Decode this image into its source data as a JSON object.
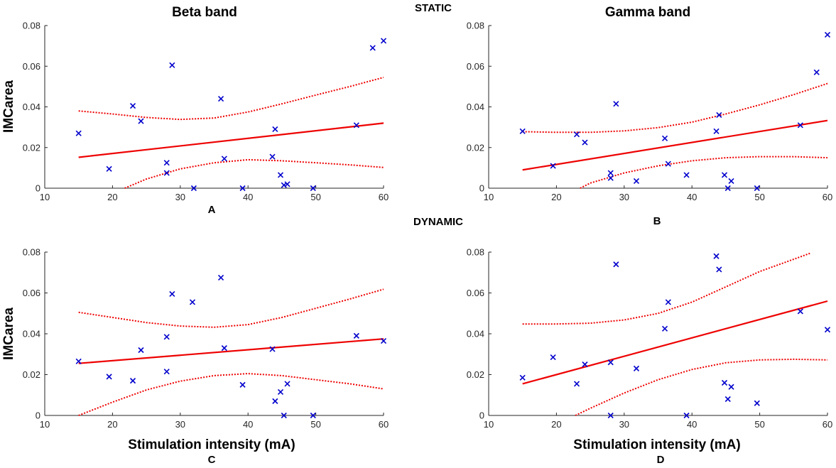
{
  "figure": {
    "section_labels": {
      "static": "STATIC",
      "dynamic": "DYNAMIC"
    },
    "colors": {
      "points": "#0000cc",
      "fit": "#ee0000",
      "axis": "#262626"
    }
  },
  "chart_data": [
    {
      "id": "A",
      "type": "scatter",
      "title": "Beta band",
      "panel_label": "A",
      "xlabel": "",
      "ylabel": "IMCarea",
      "xlim": [
        10,
        60
      ],
      "ylim": [
        0,
        0.08
      ],
      "x_ticks": [
        "10",
        "20",
        "30",
        "40",
        "50",
        "60"
      ],
      "y_ticks": [
        "0",
        "0.02",
        "0.04",
        "0.06",
        "0.08"
      ],
      "points": [
        [
          15,
          0.027
        ],
        [
          19.5,
          0.0095
        ],
        [
          23,
          0.0405
        ],
        [
          24.2,
          0.033
        ],
        [
          28,
          0.0125
        ],
        [
          28,
          0.0075
        ],
        [
          28.8,
          0.0605
        ],
        [
          32,
          0.0
        ],
        [
          36,
          0.044
        ],
        [
          36.5,
          0.0145
        ],
        [
          39.2,
          0.0
        ],
        [
          43.6,
          0.0155
        ],
        [
          44,
          0.029
        ],
        [
          44.8,
          0.0065
        ],
        [
          45.3,
          0.0015
        ],
        [
          45.8,
          0.002
        ],
        [
          49.6,
          0.0
        ],
        [
          56,
          0.031
        ],
        [
          58.4,
          0.069
        ],
        [
          60,
          0.0725
        ]
      ],
      "fit_line": [
        [
          15,
          0.0152
        ],
        [
          60,
          0.032
        ]
      ],
      "ci_upper": [
        [
          15,
          0.038
        ],
        [
          20,
          0.0365
        ],
        [
          25,
          0.0348
        ],
        [
          30,
          0.0338
        ],
        [
          35,
          0.0345
        ],
        [
          40,
          0.0375
        ],
        [
          45,
          0.0415
        ],
        [
          50,
          0.0458
        ],
        [
          55,
          0.05
        ],
        [
          60,
          0.0545
        ]
      ],
      "ci_lower": [
        [
          21.8,
          0.0
        ],
        [
          25,
          0.0045
        ],
        [
          30,
          0.0095
        ],
        [
          35,
          0.0125
        ],
        [
          40,
          0.014
        ],
        [
          45,
          0.0135
        ],
        [
          50,
          0.0125
        ],
        [
          55,
          0.0115
        ],
        [
          60,
          0.0102
        ]
      ]
    },
    {
      "id": "B",
      "type": "scatter",
      "title": "Gamma band",
      "panel_label": "B",
      "xlabel": "",
      "ylabel": "",
      "xlim": [
        10,
        60
      ],
      "ylim": [
        0,
        0.08
      ],
      "x_ticks": [
        "10",
        "20",
        "30",
        "40",
        "50",
        "60"
      ],
      "y_ticks": [
        "0",
        "0.02",
        "0.04",
        "0.06",
        "0.08"
      ],
      "points": [
        [
          15,
          0.028
        ],
        [
          19.5,
          0.011
        ],
        [
          23,
          0.0265
        ],
        [
          24.2,
          0.0225
        ],
        [
          28,
          0.0075
        ],
        [
          28,
          0.005
        ],
        [
          28.8,
          0.0415
        ],
        [
          31.8,
          0.0035
        ],
        [
          36,
          0.0245
        ],
        [
          36.5,
          0.012
        ],
        [
          39.2,
          0.0065
        ],
        [
          43.6,
          0.028
        ],
        [
          44,
          0.036
        ],
        [
          44.8,
          0.0065
        ],
        [
          45.3,
          0.0
        ],
        [
          45.8,
          0.0035
        ],
        [
          49.6,
          0.0
        ],
        [
          56,
          0.031
        ],
        [
          58.4,
          0.057
        ],
        [
          60,
          0.0755
        ]
      ],
      "fit_line": [
        [
          15,
          0.009
        ],
        [
          60,
          0.0333
        ]
      ],
      "ci_upper": [
        [
          15,
          0.0278
        ],
        [
          20,
          0.0275
        ],
        [
          25,
          0.0275
        ],
        [
          30,
          0.0282
        ],
        [
          35,
          0.0298
        ],
        [
          40,
          0.0325
        ],
        [
          45,
          0.0365
        ],
        [
          50,
          0.041
        ],
        [
          55,
          0.046
        ],
        [
          60,
          0.0515
        ]
      ],
      "ci_lower": [
        [
          23.5,
          0.0
        ],
        [
          25,
          0.0025
        ],
        [
          30,
          0.0075
        ],
        [
          35,
          0.011
        ],
        [
          40,
          0.0135
        ],
        [
          45,
          0.015
        ],
        [
          50,
          0.0155
        ],
        [
          55,
          0.0155
        ],
        [
          60,
          0.015
        ]
      ]
    },
    {
      "id": "C",
      "type": "scatter",
      "title": "",
      "panel_label": "C",
      "xlabel": "Stimulation intensity (mA)",
      "ylabel": "IMCarea",
      "xlim": [
        10,
        60
      ],
      "ylim": [
        0,
        0.08
      ],
      "x_ticks": [
        "10",
        "20",
        "30",
        "40",
        "50",
        "60"
      ],
      "y_ticks": [
        "0",
        "0.02",
        "0.04",
        "0.06",
        "0.08"
      ],
      "points": [
        [
          15,
          0.0265
        ],
        [
          19.5,
          0.019
        ],
        [
          23,
          0.017
        ],
        [
          24.2,
          0.032
        ],
        [
          28,
          0.0385
        ],
        [
          28,
          0.0215
        ],
        [
          28.8,
          0.0595
        ],
        [
          31.8,
          0.0555
        ],
        [
          36,
          0.0675
        ],
        [
          36.5,
          0.033
        ],
        [
          39.2,
          0.015
        ],
        [
          43.6,
          0.0325
        ],
        [
          44,
          0.007
        ],
        [
          44.8,
          0.0115
        ],
        [
          45.3,
          0.0
        ],
        [
          45.8,
          0.0155
        ],
        [
          49.6,
          0.0
        ],
        [
          56,
          0.039
        ],
        [
          60,
          0.0365
        ]
      ],
      "fit_line": [
        [
          15,
          0.0255
        ],
        [
          60,
          0.0375
        ]
      ],
      "ci_upper": [
        [
          15,
          0.0505
        ],
        [
          20,
          0.048
        ],
        [
          25,
          0.0455
        ],
        [
          30,
          0.0438
        ],
        [
          35,
          0.0432
        ],
        [
          40,
          0.0445
        ],
        [
          45,
          0.048
        ],
        [
          50,
          0.0525
        ],
        [
          55,
          0.057
        ],
        [
          60,
          0.0618
        ]
      ],
      "ci_lower": [
        [
          15,
          0.0
        ],
        [
          20,
          0.0065
        ],
        [
          25,
          0.0125
        ],
        [
          30,
          0.0168
        ],
        [
          35,
          0.0195
        ],
        [
          40,
          0.0205
        ],
        [
          45,
          0.0195
        ],
        [
          50,
          0.0175
        ],
        [
          55,
          0.0155
        ],
        [
          60,
          0.013
        ]
      ]
    },
    {
      "id": "D",
      "type": "scatter",
      "title": "",
      "panel_label": "D",
      "xlabel": "Stimulation intensity (mA)",
      "ylabel": "",
      "xlim": [
        10,
        60
      ],
      "ylim": [
        0,
        0.08
      ],
      "x_ticks": [
        "10",
        "20",
        "30",
        "40",
        "50",
        "60"
      ],
      "y_ticks": [
        "0",
        "0.02",
        "0.04",
        "0.06",
        "0.08"
      ],
      "points": [
        [
          15,
          0.0185
        ],
        [
          19.5,
          0.0285
        ],
        [
          23,
          0.0155
        ],
        [
          24.2,
          0.025
        ],
        [
          28,
          0.026
        ],
        [
          28,
          0.0
        ],
        [
          28.8,
          0.074
        ],
        [
          31.8,
          0.023
        ],
        [
          36,
          0.0425
        ],
        [
          36.5,
          0.0555
        ],
        [
          39.2,
          0.0
        ],
        [
          43.6,
          0.078
        ],
        [
          44,
          0.0715
        ],
        [
          44.8,
          0.016
        ],
        [
          45.3,
          0.008
        ],
        [
          45.8,
          0.014
        ],
        [
          49.6,
          0.006
        ],
        [
          56,
          0.051
        ],
        [
          60,
          0.042
        ]
      ],
      "fit_line": [
        [
          15,
          0.0155
        ],
        [
          60,
          0.056
        ]
      ],
      "ci_upper": [
        [
          15,
          0.0448
        ],
        [
          20,
          0.0448
        ],
        [
          25,
          0.0452
        ],
        [
          30,
          0.0468
        ],
        [
          35,
          0.05
        ],
        [
          40,
          0.0555
        ],
        [
          45,
          0.063
        ],
        [
          50,
          0.0705
        ],
        [
          55,
          0.0765
        ],
        [
          57.5,
          0.0795
        ]
      ],
      "ci_lower": [
        [
          22.8,
          0.0
        ],
        [
          25,
          0.0035
        ],
        [
          30,
          0.011
        ],
        [
          35,
          0.0175
        ],
        [
          40,
          0.0225
        ],
        [
          45,
          0.0258
        ],
        [
          50,
          0.0272
        ],
        [
          55,
          0.0275
        ],
        [
          60,
          0.0272
        ]
      ]
    }
  ]
}
